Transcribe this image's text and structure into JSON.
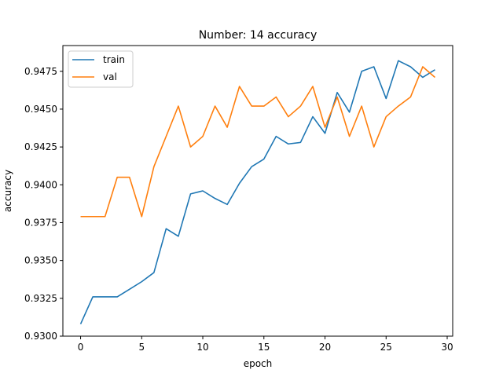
{
  "chart_data": {
    "type": "line",
    "title": "Number: 14 accuracy",
    "xlabel": "epoch",
    "ylabel": "accuracy",
    "xlim": [
      -1.45,
      30.45
    ],
    "ylim": [
      0.93,
      0.9492
    ],
    "xticks": [
      0,
      5,
      10,
      15,
      20,
      25,
      30
    ],
    "yticks": [
      0.93,
      0.9325,
      0.935,
      0.9375,
      0.94,
      0.9425,
      0.945,
      0.9475
    ],
    "legend": "top-left",
    "grid": false,
    "x": [
      0,
      1,
      2,
      3,
      4,
      5,
      6,
      7,
      8,
      9,
      10,
      11,
      12,
      13,
      14,
      15,
      16,
      17,
      18,
      19,
      20,
      21,
      22,
      23,
      24,
      25,
      26,
      27,
      28,
      29
    ],
    "series": [
      {
        "name": "train",
        "color": "#1f77b4",
        "values": [
          0.9308,
          0.9326,
          0.9326,
          0.9326,
          0.9331,
          0.9336,
          0.9342,
          0.9371,
          0.9366,
          0.9394,
          0.9396,
          0.9391,
          0.9387,
          0.9401,
          0.9412,
          0.9417,
          0.9432,
          0.9427,
          0.9428,
          0.9445,
          0.9434,
          0.9461,
          0.9448,
          0.9475,
          0.9478,
          0.9457,
          0.9482,
          0.9478,
          0.9471,
          0.9476
        ]
      },
      {
        "name": "val",
        "color": "#ff7f0e",
        "values": [
          0.9379,
          0.9379,
          0.9379,
          0.9405,
          0.9405,
          0.9379,
          0.9412,
          0.9432,
          0.9452,
          0.9425,
          0.9432,
          0.9452,
          0.9438,
          0.9465,
          0.9452,
          0.9452,
          0.9458,
          0.9445,
          0.9452,
          0.9465,
          0.9438,
          0.9458,
          0.9432,
          0.9452,
          0.9425,
          0.9445,
          0.9452,
          0.9458,
          0.9478,
          0.9471
        ]
      }
    ]
  }
}
